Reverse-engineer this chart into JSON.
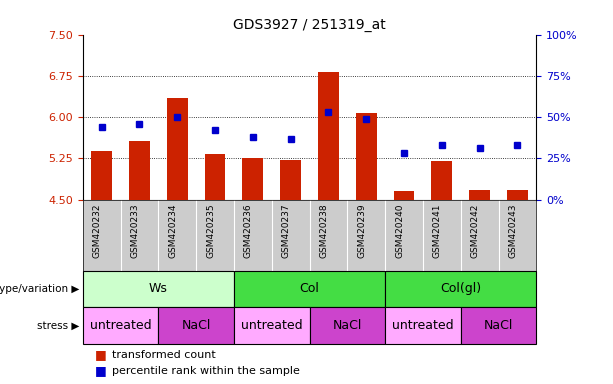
{
  "title": "GDS3927 / 251319_at",
  "samples": [
    "GSM420232",
    "GSM420233",
    "GSM420234",
    "GSM420235",
    "GSM420236",
    "GSM420237",
    "GSM420238",
    "GSM420239",
    "GSM420240",
    "GSM420241",
    "GSM420242",
    "GSM420243"
  ],
  "bar_values": [
    5.38,
    5.57,
    6.35,
    5.33,
    5.25,
    5.22,
    6.82,
    6.07,
    4.65,
    5.2,
    4.68,
    4.67
  ],
  "bar_bottom": 4.5,
  "blue_dot_percentiles": [
    44,
    46,
    50,
    42,
    38,
    37,
    53,
    49,
    28,
    33,
    31,
    33
  ],
  "ylim_left": [
    4.5,
    7.5
  ],
  "ylim_right": [
    0,
    100
  ],
  "yticks_left": [
    4.5,
    5.25,
    6.0,
    6.75,
    7.5
  ],
  "yticks_right": [
    0,
    25,
    50,
    75,
    100
  ],
  "bar_color": "#cc2200",
  "dot_color": "#0000cc",
  "genotype_groups": [
    {
      "label": "Ws",
      "start": 0,
      "end": 4,
      "color": "#ccffcc"
    },
    {
      "label": "Col",
      "start": 4,
      "end": 8,
      "color": "#44dd44"
    },
    {
      "label": "Col(gl)",
      "start": 8,
      "end": 12,
      "color": "#44dd44"
    }
  ],
  "stress_groups": [
    {
      "label": "untreated",
      "start": 0,
      "end": 2,
      "color": "#ffaaff"
    },
    {
      "label": "NaCl",
      "start": 2,
      "end": 4,
      "color": "#cc44cc"
    },
    {
      "label": "untreated",
      "start": 4,
      "end": 6,
      "color": "#ffaaff"
    },
    {
      "label": "NaCl",
      "start": 6,
      "end": 8,
      "color": "#cc44cc"
    },
    {
      "label": "untreated",
      "start": 8,
      "end": 10,
      "color": "#ffaaff"
    },
    {
      "label": "NaCl",
      "start": 10,
      "end": 12,
      "color": "#cc44cc"
    }
  ],
  "sample_bg_color": "#cccccc",
  "legend_red_label": "transformed count",
  "legend_blue_label": "percentile rank within the sample"
}
